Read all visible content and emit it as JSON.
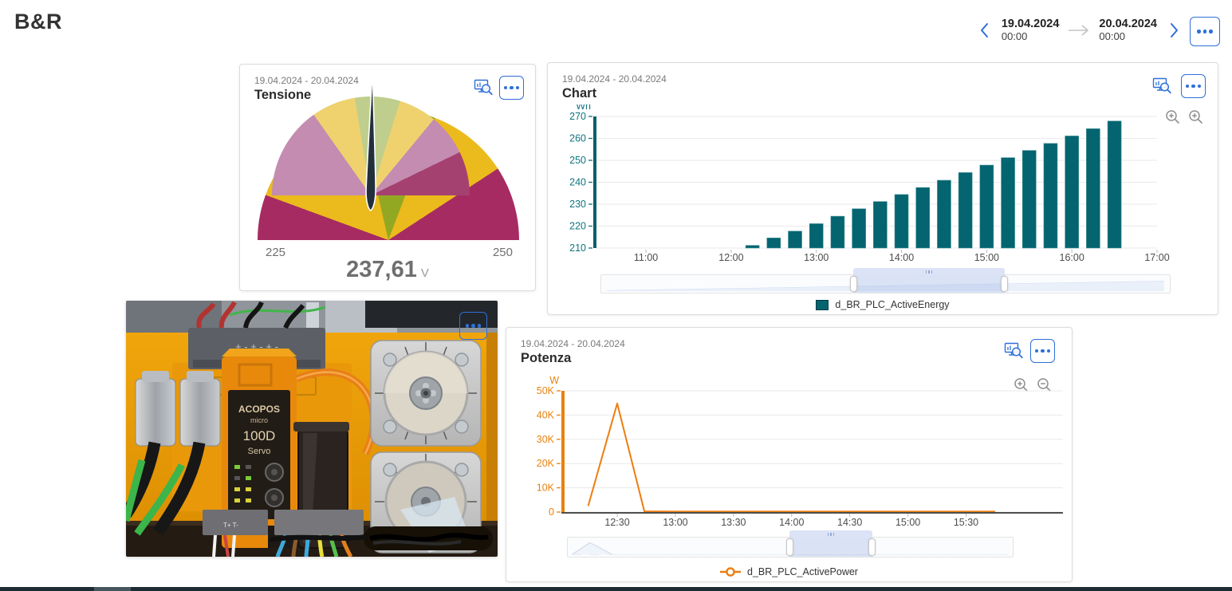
{
  "colors": {
    "accent_blue": "#2E6FD9",
    "teal": "#04646F",
    "orange": "#ED7D0E"
  },
  "header": {
    "logo": "B&R",
    "date_nav": {
      "from_date": "19.04.2024",
      "from_time": "00:00",
      "to_date": "20.04.2024",
      "to_time": "00:00"
    }
  },
  "cards": {
    "tensione": {
      "date_range": "19.04.2024 - 20.04.2024",
      "title": "Tensione",
      "gauge": {
        "min": 225,
        "max": 250,
        "min_label": "225",
        "max_label": "250",
        "value": 237.61,
        "value_label": "237,61",
        "unit": "V",
        "needle_color": "#22303C",
        "outer_segments": [
          {
            "to": 227.8,
            "color": "#A62B63"
          },
          {
            "to": 235.7,
            "color": "#EBBA1C"
          },
          {
            "to": 240.4,
            "color": "#93A822"
          },
          {
            "to": 245.4,
            "color": "#EBBA1C"
          },
          {
            "to": 250,
            "color": "#A62B63"
          }
        ],
        "inner_segments": [
          {
            "to": 232.6,
            "color": "#C38CB0"
          },
          {
            "to": 236.2,
            "color": "#EFD26E"
          },
          {
            "to": 239.9,
            "color": "#BFCE8C"
          },
          {
            "to": 243.0,
            "color": "#EFD26E"
          },
          {
            "to": 246.4,
            "color": "#C38CB0"
          },
          {
            "to": 250,
            "color": "#A54170"
          }
        ]
      }
    },
    "energy": {
      "date_range": "19.04.2024 - 20.04.2024",
      "title": "Chart",
      "chart_data": {
        "type": "bar",
        "title": "Chart",
        "ylabel": "Wh",
        "series_name": "d_BR_PLC_ActiveEnergy",
        "color": "#04646F",
        "axis_color": "#0A5F6A",
        "ylim": [
          210,
          270
        ],
        "yticks": [
          [
            210,
            "210"
          ],
          [
            220,
            "220"
          ],
          [
            230,
            "230"
          ],
          [
            240,
            "240"
          ],
          [
            250,
            "250"
          ],
          [
            260,
            "260"
          ],
          [
            270,
            "270"
          ]
        ],
        "x_domain": [
          "10:24",
          "17:00"
        ],
        "xticks": [
          "11:00",
          "12:00",
          "13:00",
          "14:00",
          "15:00",
          "16:00",
          "17:00"
        ],
        "points": [
          [
            "12:15",
            211.2
          ],
          [
            "12:30",
            214.6
          ],
          [
            "12:45",
            217.7
          ],
          [
            "13:00",
            221.1
          ],
          [
            "13:15",
            224.5
          ],
          [
            "13:30",
            227.9
          ],
          [
            "13:45",
            231.2
          ],
          [
            "14:00",
            234.4
          ],
          [
            "14:15",
            237.6
          ],
          [
            "14:30",
            240.9
          ],
          [
            "14:45",
            244.4
          ],
          [
            "15:00",
            247.8
          ],
          [
            "15:15",
            251.2
          ],
          [
            "15:30",
            254.5
          ],
          [
            "15:45",
            257.7
          ],
          [
            "16:00",
            261.1
          ],
          [
            "16:15",
            264.4
          ],
          [
            "16:30",
            267.9
          ]
        ]
      }
    },
    "photo": {
      "labels": {
        "line1": "ACOPOS",
        "line2": "micro",
        "line3": "100D",
        "line4": "Servo"
      }
    },
    "power": {
      "date_range": "19.04.2024 - 20.04.2024",
      "title": "Potenza",
      "chart_data": {
        "type": "line",
        "title": "Potenza",
        "ylabel": "W",
        "series_name": "d_BR_PLC_ActivePower",
        "color": "#ED7D0E",
        "axis_color": "#E8820E",
        "ylim": [
          0,
          50000
        ],
        "yticks": [
          [
            0,
            "0"
          ],
          [
            10000,
            "10K"
          ],
          [
            20000,
            "20K"
          ],
          [
            30000,
            "30K"
          ],
          [
            40000,
            "40K"
          ],
          [
            50000,
            "50K"
          ]
        ],
        "x_domain": [
          "12:02",
          "16:20"
        ],
        "xticks": [
          "12:30",
          "13:00",
          "13:30",
          "14:00",
          "14:30",
          "15:00",
          "15:30"
        ],
        "points": [
          [
            "12:15",
            2500
          ],
          [
            "12:30",
            44800
          ],
          [
            "12:44",
            300
          ],
          [
            "13:00",
            200
          ],
          [
            "13:30",
            200
          ],
          [
            "14:00",
            200
          ],
          [
            "14:30",
            200
          ],
          [
            "15:00",
            200
          ],
          [
            "15:30",
            200
          ],
          [
            "15:45",
            200
          ]
        ]
      }
    }
  }
}
